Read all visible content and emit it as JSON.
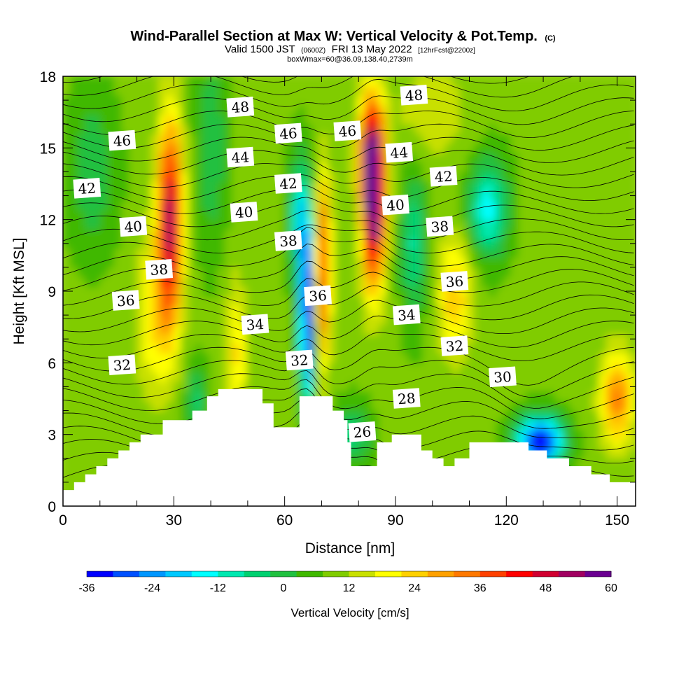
{
  "chart_data": {
    "type": "heatmap",
    "title": "Wind-Parallel Section at Max W: Vertical Velocity & Pot.Temp.",
    "title_suffix": "(C)",
    "subtitle_parts": [
      "Valid 1500 JST",
      "(0600Z)",
      "FRI 13 May 2022",
      "[12hrFcst@2200z]"
    ],
    "subtitle2": "boxWmax=60@36.09,138.40,2739m",
    "xlabel": "Distance [nm]",
    "ylabel": "Height [Kft MSL]",
    "xlim": [
      0,
      155
    ],
    "ylim": [
      0,
      18
    ],
    "xticks": [
      0,
      30,
      60,
      90,
      120,
      150
    ],
    "yticks": [
      0,
      3,
      6,
      9,
      12,
      15,
      18
    ],
    "colorbar": {
      "label": "Vertical Velocity [cm/s]",
      "ticks": [
        -36,
        -24,
        -12,
        0,
        12,
        24,
        36,
        48,
        60
      ],
      "range": [
        -36,
        60
      ],
      "colors": [
        "#0000ff",
        "#0050ff",
        "#0096ff",
        "#00c8ff",
        "#00ffff",
        "#00e8b0",
        "#00d070",
        "#20c040",
        "#40b800",
        "#80cc00",
        "#c8e000",
        "#ffff00",
        "#ffd000",
        "#ffa000",
        "#ff7800",
        "#ff4000",
        "#ff0000",
        "#d00030",
        "#a00060",
        "#6a0090"
      ]
    },
    "contour_field": "potential_temperature",
    "contour_labels": [
      {
        "x": 16,
        "y": 15.3,
        "value": "46"
      },
      {
        "x": 48,
        "y": 16.7,
        "value": "48"
      },
      {
        "x": 61,
        "y": 15.6,
        "value": "46"
      },
      {
        "x": 77,
        "y": 15.7,
        "value": "46"
      },
      {
        "x": 95,
        "y": 17.2,
        "value": "48"
      },
      {
        "x": 91,
        "y": 14.8,
        "value": "44"
      },
      {
        "x": 48,
        "y": 14.6,
        "value": "44"
      },
      {
        "x": 6.5,
        "y": 13.3,
        "value": "42"
      },
      {
        "x": 61,
        "y": 13.5,
        "value": "42"
      },
      {
        "x": 103,
        "y": 13.8,
        "value": "42"
      },
      {
        "x": 19,
        "y": 11.7,
        "value": "40"
      },
      {
        "x": 49,
        "y": 12.3,
        "value": "40"
      },
      {
        "x": 90,
        "y": 12.6,
        "value": "40"
      },
      {
        "x": 61,
        "y": 11.1,
        "value": "38"
      },
      {
        "x": 102,
        "y": 11.7,
        "value": "38"
      },
      {
        "x": 26,
        "y": 9.9,
        "value": "38"
      },
      {
        "x": 17,
        "y": 8.6,
        "value": "36"
      },
      {
        "x": 69,
        "y": 8.8,
        "value": "36"
      },
      {
        "x": 106,
        "y": 9.4,
        "value": "36"
      },
      {
        "x": 52,
        "y": 7.6,
        "value": "34"
      },
      {
        "x": 93,
        "y": 8.0,
        "value": "34"
      },
      {
        "x": 16,
        "y": 5.9,
        "value": "32"
      },
      {
        "x": 64,
        "y": 6.1,
        "value": "32"
      },
      {
        "x": 106,
        "y": 6.7,
        "value": "32"
      },
      {
        "x": 119,
        "y": 5.4,
        "value": "30"
      },
      {
        "x": 93,
        "y": 4.5,
        "value": "28"
      },
      {
        "x": 81,
        "y": 3.1,
        "value": "26"
      }
    ],
    "terrain_kft": [
      [
        0,
        0.67
      ],
      [
        3,
        1.0
      ],
      [
        6,
        1.33
      ],
      [
        9,
        1.67
      ],
      [
        12,
        2.0
      ],
      [
        15,
        2.33
      ],
      [
        18,
        2.67
      ],
      [
        21,
        3.0
      ],
      [
        27,
        3.6
      ],
      [
        32,
        3.6
      ],
      [
        35,
        4.0
      ],
      [
        39,
        4.6
      ],
      [
        42,
        4.9
      ],
      [
        51,
        4.9
      ],
      [
        54,
        4.3
      ],
      [
        57,
        3.3
      ],
      [
        61,
        3.3
      ],
      [
        64,
        4.6
      ],
      [
        70,
        4.6
      ],
      [
        73,
        4.0
      ],
      [
        76,
        3.6
      ],
      [
        77,
        2.67
      ],
      [
        78,
        1.67
      ],
      [
        81,
        1.67
      ],
      [
        85,
        2.67
      ],
      [
        89,
        3.0
      ],
      [
        93,
        3.0
      ],
      [
        97,
        2.33
      ],
      [
        100,
        2.0
      ],
      [
        103,
        1.67
      ],
      [
        106,
        2.0
      ],
      [
        110,
        2.67
      ],
      [
        122,
        2.67
      ],
      [
        126,
        2.33
      ],
      [
        131,
        2.0
      ],
      [
        137,
        1.67
      ],
      [
        143,
        1.33
      ],
      [
        148,
        1.0
      ],
      [
        155,
        1.0
      ]
    ],
    "notable_features": [
      {
        "feature": "updraft",
        "x": 29,
        "y": 12,
        "value": 50
      },
      {
        "feature": "updraft",
        "x": 84,
        "y": 12.6,
        "value": 60
      },
      {
        "feature": "updraft",
        "x": 70,
        "y": 10,
        "value": 40
      },
      {
        "feature": "downdraft",
        "x": 66,
        "y": 7,
        "value": -36
      },
      {
        "feature": "downdraft",
        "x": 129,
        "y": 2.5,
        "value": -36
      },
      {
        "feature": "updraft",
        "x": 150,
        "y": 4.5,
        "value": 30
      },
      {
        "feature": "downdraft",
        "x": 115,
        "y": 12.8,
        "value": -16
      }
    ]
  }
}
